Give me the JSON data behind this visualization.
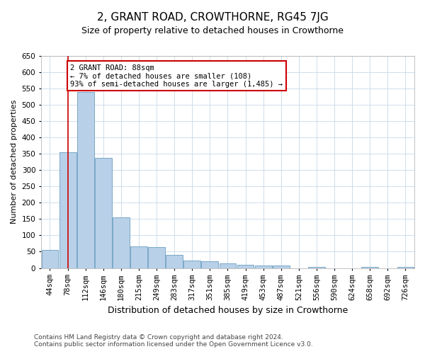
{
  "title": "2, GRANT ROAD, CROWTHORNE, RG45 7JG",
  "subtitle": "Size of property relative to detached houses in Crowthorne",
  "xlabel": "Distribution of detached houses by size in Crowthorne",
  "ylabel": "Number of detached properties",
  "categories": [
    "44sqm",
    "78sqm",
    "112sqm",
    "146sqm",
    "180sqm",
    "215sqm",
    "249sqm",
    "283sqm",
    "317sqm",
    "351sqm",
    "385sqm",
    "419sqm",
    "453sqm",
    "487sqm",
    "521sqm",
    "556sqm",
    "590sqm",
    "624sqm",
    "658sqm",
    "692sqm",
    "726sqm"
  ],
  "values": [
    55,
    355,
    540,
    338,
    155,
    67,
    65,
    40,
    23,
    20,
    15,
    10,
    8,
    8,
    0,
    4,
    0,
    0,
    3,
    0,
    3
  ],
  "bar_color": "#b8d0e8",
  "bar_edge_color": "#6a9fc0",
  "red_line_x": 1.0,
  "annotation_text": "2 GRANT ROAD: 88sqm\n← 7% of detached houses are smaller (108)\n93% of semi-detached houses are larger (1,485) →",
  "annotation_box_color": "#ffffff",
  "annotation_box_edge_color": "#cc0000",
  "ylim": [
    0,
    650
  ],
  "yticks": [
    0,
    50,
    100,
    150,
    200,
    250,
    300,
    350,
    400,
    450,
    500,
    550,
    600,
    650
  ],
  "footer1": "Contains HM Land Registry data © Crown copyright and database right 2024.",
  "footer2": "Contains public sector information licensed under the Open Government Licence v3.0.",
  "background_color": "#ffffff",
  "grid_color": "#c8d8e8",
  "title_fontsize": 11,
  "subtitle_fontsize": 9,
  "ylabel_fontsize": 8,
  "xlabel_fontsize": 9,
  "tick_fontsize": 7.5,
  "annotation_fontsize": 7.5,
  "footer_fontsize": 6.5
}
